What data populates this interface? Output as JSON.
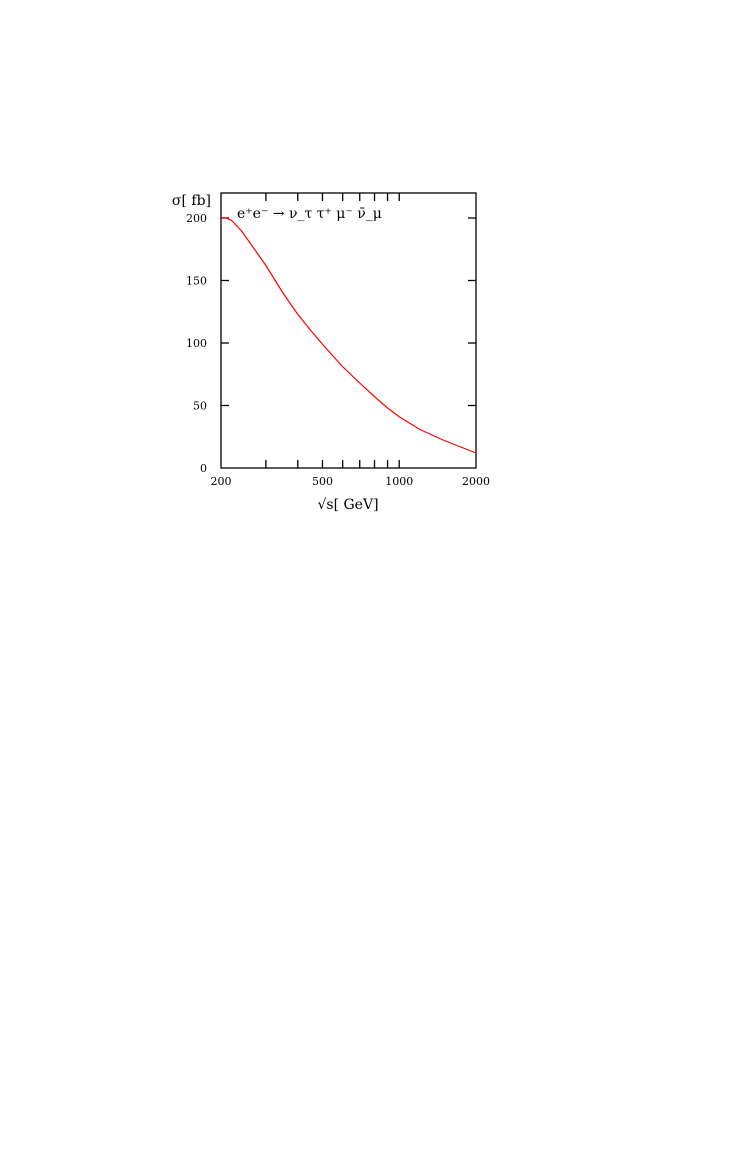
{
  "chart_data": {
    "type": "line",
    "title": "",
    "xlabel": "√s[ GeV]",
    "ylabel": "σ[ fb]",
    "xscale": "log",
    "xlim": [
      200,
      2000
    ],
    "ylim": [
      0,
      220
    ],
    "x_ticks": [
      {
        "value": 200,
        "label": "200"
      },
      {
        "value": 500,
        "label": "500"
      },
      {
        "value": 1000,
        "label": "1000"
      },
      {
        "value": 2000,
        "label": "2000"
      }
    ],
    "x_minor_ticks": [
      300,
      400,
      600,
      700,
      800,
      900
    ],
    "y_ticks": [
      {
        "value": 0,
        "label": "0"
      },
      {
        "value": 50,
        "label": "50"
      },
      {
        "value": 100,
        "label": "100"
      },
      {
        "value": 150,
        "label": "150"
      },
      {
        "value": 200,
        "label": "200"
      }
    ],
    "grid": false,
    "annotation": "e⁺e⁻ → ν_τ τ⁺ μ⁻ ν̄_μ",
    "series": [
      {
        "color": "#ff0000",
        "x": [
          200,
          210,
          220,
          240,
          260,
          300,
          350,
          400,
          450,
          500,
          600,
          700,
          800,
          900,
          1000,
          1200,
          1500,
          2000
        ],
        "y": [
          200,
          200,
          198,
          190,
          180,
          162,
          140,
          123,
          110,
          99,
          81,
          68,
          57,
          48,
          41,
          31,
          22,
          12
        ]
      }
    ]
  }
}
